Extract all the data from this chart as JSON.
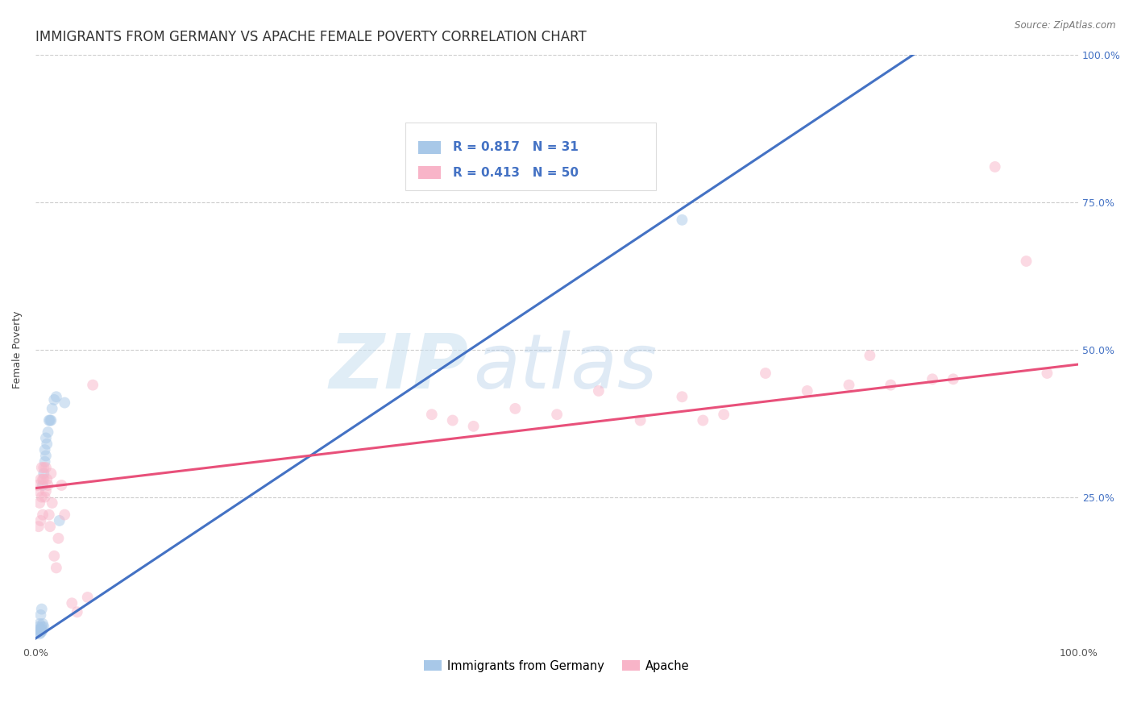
{
  "title": "IMMIGRANTS FROM GERMANY VS APACHE FEMALE POVERTY CORRELATION CHART",
  "source": "Source: ZipAtlas.com",
  "ylabel": "Female Poverty",
  "xlim": [
    0,
    1
  ],
  "ylim": [
    0,
    1
  ],
  "legend_items": [
    {
      "label": "Immigrants from Germany",
      "color": "#a8c8e8",
      "R": "0.817",
      "N": "31"
    },
    {
      "label": "Apache",
      "color": "#f8b4c8",
      "R": "0.413",
      "N": "50"
    }
  ],
  "blue_scatter_x": [
    0.002,
    0.003,
    0.003,
    0.004,
    0.004,
    0.005,
    0.005,
    0.005,
    0.006,
    0.006,
    0.006,
    0.007,
    0.007,
    0.007,
    0.008,
    0.008,
    0.009,
    0.009,
    0.01,
    0.01,
    0.011,
    0.012,
    0.013,
    0.014,
    0.015,
    0.016,
    0.018,
    0.02,
    0.023,
    0.028,
    0.62
  ],
  "blue_scatter_y": [
    0.02,
    0.025,
    0.03,
    0.018,
    0.035,
    0.02,
    0.025,
    0.05,
    0.022,
    0.03,
    0.06,
    0.025,
    0.035,
    0.27,
    0.03,
    0.29,
    0.31,
    0.33,
    0.32,
    0.35,
    0.34,
    0.36,
    0.38,
    0.38,
    0.38,
    0.4,
    0.415,
    0.42,
    0.21,
    0.41,
    0.72
  ],
  "pink_scatter_x": [
    0.002,
    0.003,
    0.003,
    0.004,
    0.005,
    0.005,
    0.006,
    0.006,
    0.007,
    0.007,
    0.008,
    0.008,
    0.009,
    0.01,
    0.01,
    0.011,
    0.012,
    0.013,
    0.014,
    0.015,
    0.016,
    0.018,
    0.02,
    0.022,
    0.025,
    0.028,
    0.035,
    0.04,
    0.05,
    0.055,
    0.38,
    0.4,
    0.42,
    0.46,
    0.5,
    0.54,
    0.58,
    0.62,
    0.64,
    0.66,
    0.7,
    0.74,
    0.78,
    0.8,
    0.82,
    0.86,
    0.88,
    0.92,
    0.95,
    0.97
  ],
  "pink_scatter_y": [
    0.27,
    0.2,
    0.26,
    0.24,
    0.28,
    0.21,
    0.3,
    0.25,
    0.28,
    0.22,
    0.28,
    0.3,
    0.25,
    0.26,
    0.3,
    0.28,
    0.27,
    0.22,
    0.2,
    0.29,
    0.24,
    0.15,
    0.13,
    0.18,
    0.27,
    0.22,
    0.07,
    0.055,
    0.08,
    0.44,
    0.39,
    0.38,
    0.37,
    0.4,
    0.39,
    0.43,
    0.38,
    0.42,
    0.38,
    0.39,
    0.46,
    0.43,
    0.44,
    0.49,
    0.44,
    0.45,
    0.45,
    0.81,
    0.65,
    0.46
  ],
  "blue_line_x": [
    0.0,
    0.85
  ],
  "blue_line_y": [
    0.01,
    1.01
  ],
  "pink_line_x": [
    0.0,
    1.0
  ],
  "pink_line_y": [
    0.265,
    0.475
  ],
  "scatter_size": 100,
  "scatter_alpha": 0.5,
  "blue_color": "#a8c8e8",
  "pink_color": "#f8b4c8",
  "blue_line_color": "#4472c4",
  "pink_line_color": "#e8507a",
  "grid_color": "#cccccc",
  "bg_color": "#ffffff",
  "watermark_zip": "ZIP",
  "watermark_atlas": "atlas",
  "title_fontsize": 12,
  "label_fontsize": 9,
  "tick_fontsize": 9,
  "right_tick_color": "#4472c4",
  "legend_R_color": "#4472c4"
}
